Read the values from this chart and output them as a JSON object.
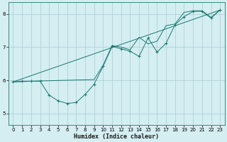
{
  "xlabel": "Humidex (Indice chaleur)",
  "bg_color": "#d4eef2",
  "grid_color": "#aaccd4",
  "line_color": "#1a7a6e",
  "xlim": [
    -0.5,
    23.5
  ],
  "ylim": [
    4.65,
    8.35
  ],
  "yticks": [
    5,
    6,
    7,
    8
  ],
  "xticks": [
    0,
    1,
    2,
    3,
    4,
    5,
    6,
    7,
    8,
    9,
    10,
    11,
    12,
    13,
    14,
    15,
    16,
    17,
    18,
    19,
    20,
    21,
    22,
    23
  ],
  "series_main": [
    [
      0,
      5.95
    ],
    [
      1,
      5.97
    ],
    [
      2,
      5.97
    ],
    [
      3,
      5.97
    ],
    [
      4,
      5.55
    ],
    [
      5,
      5.38
    ],
    [
      6,
      5.3
    ],
    [
      7,
      5.33
    ],
    [
      8,
      5.57
    ],
    [
      9,
      5.88
    ],
    [
      10,
      6.42
    ],
    [
      11,
      7.02
    ],
    [
      12,
      6.95
    ],
    [
      13,
      6.88
    ],
    [
      14,
      6.72
    ],
    [
      15,
      7.28
    ],
    [
      16,
      6.85
    ],
    [
      17,
      7.12
    ],
    [
      18,
      7.68
    ],
    [
      19,
      7.92
    ],
    [
      20,
      8.08
    ],
    [
      21,
      8.08
    ],
    [
      22,
      7.88
    ],
    [
      23,
      8.12
    ]
  ],
  "series_smooth": [
    [
      0,
      5.95
    ],
    [
      3,
      5.98
    ],
    [
      9,
      6.02
    ],
    [
      10,
      6.45
    ],
    [
      11,
      7.05
    ],
    [
      12,
      7.0
    ],
    [
      13,
      6.92
    ],
    [
      14,
      7.3
    ],
    [
      15,
      7.1
    ],
    [
      16,
      7.18
    ],
    [
      17,
      7.65
    ],
    [
      18,
      7.7
    ],
    [
      19,
      8.05
    ],
    [
      20,
      8.1
    ],
    [
      21,
      8.1
    ],
    [
      22,
      7.9
    ],
    [
      23,
      8.12
    ]
  ],
  "series_trend": [
    [
      0,
      5.95
    ],
    [
      23,
      8.12
    ]
  ]
}
